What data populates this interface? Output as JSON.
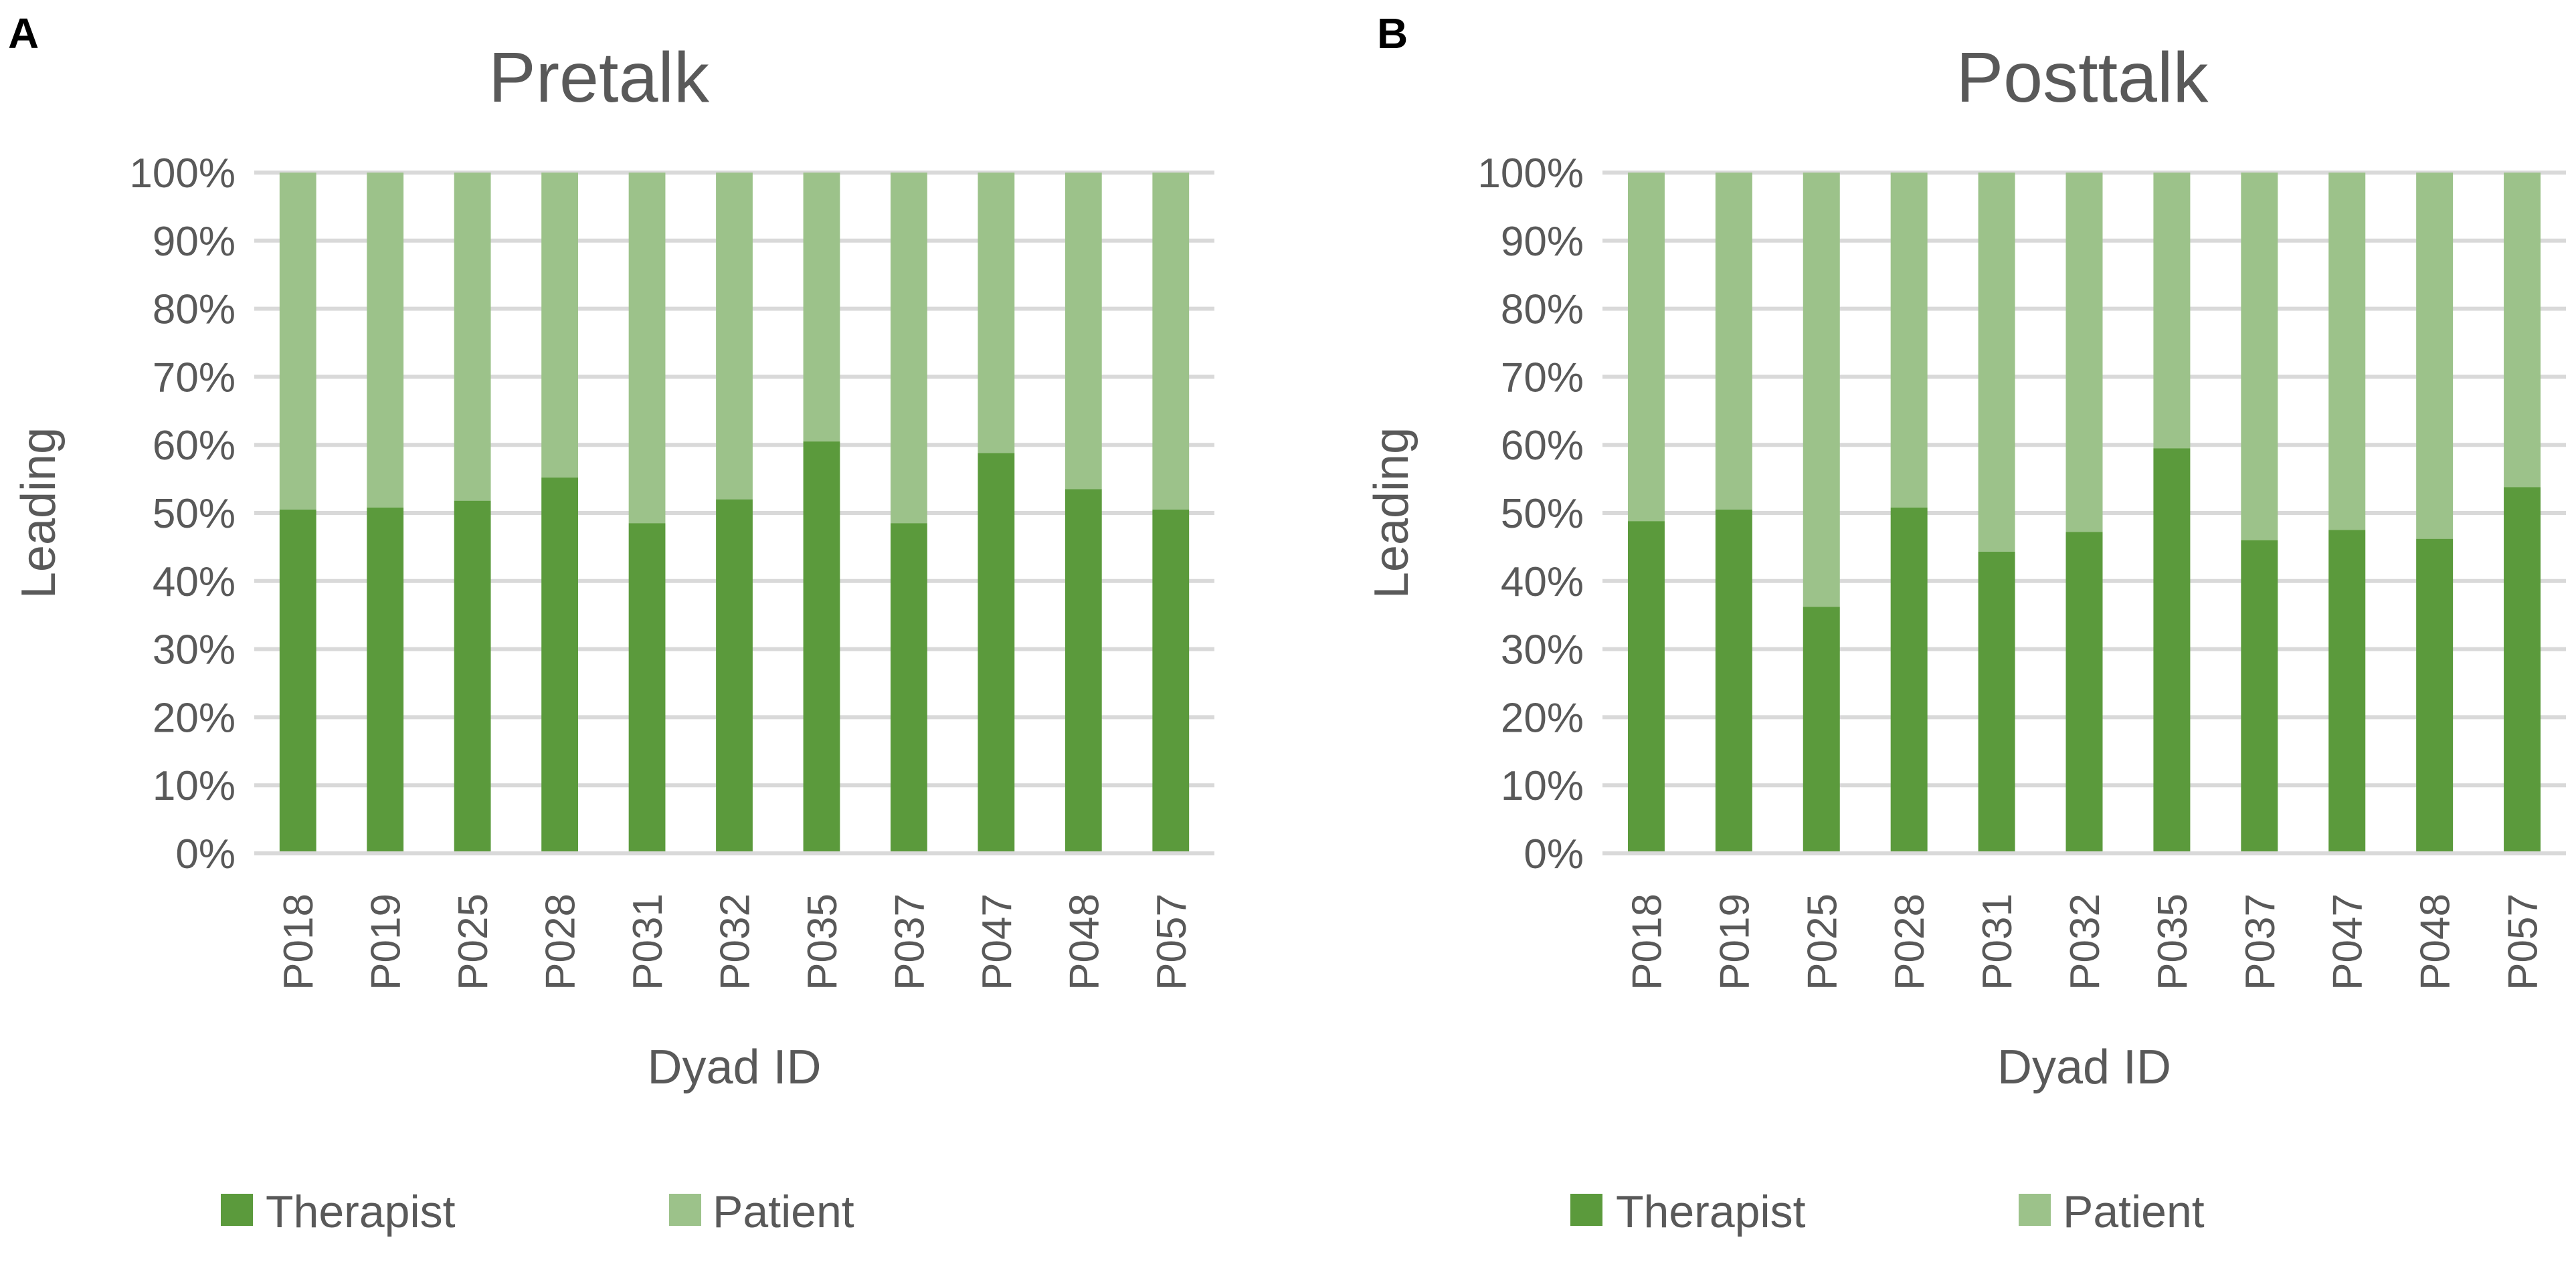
{
  "colors": {
    "therapist": "#5b9a3c",
    "patient": "#9cc28a",
    "grid": "#d9d9d9",
    "text": "#595959"
  },
  "chart_data": [
    {
      "panel_label": "A",
      "type": "bar",
      "stacked": true,
      "title": "Pretalk",
      "xlabel": "Dyad ID",
      "ylabel": "Leading",
      "ylim": [
        0,
        100
      ],
      "yticks": [
        "0%",
        "10%",
        "20%",
        "30%",
        "40%",
        "50%",
        "60%",
        "70%",
        "80%",
        "90%",
        "100%"
      ],
      "categories": [
        "P018",
        "P019",
        "P025",
        "P028",
        "P031",
        "P032",
        "P035",
        "P037",
        "P047",
        "P048",
        "P057"
      ],
      "series": [
        {
          "name": "Therapist",
          "values": [
            50.5,
            50.8,
            51.8,
            55.2,
            48.5,
            52,
            60.5,
            48.5,
            58.8,
            53.5,
            50.5
          ]
        },
        {
          "name": "Patient",
          "values": [
            49.5,
            49.2,
            48.2,
            44.8,
            51.5,
            48,
            39.5,
            51.5,
            41.2,
            46.5,
            49.5
          ]
        }
      ],
      "legend": [
        "Therapist",
        "Patient"
      ],
      "legend_position": "bottom"
    },
    {
      "panel_label": "B",
      "type": "bar",
      "stacked": true,
      "title": "Posttalk",
      "xlabel": "Dyad ID",
      "ylabel": "Leading",
      "ylim": [
        0,
        100
      ],
      "yticks": [
        "0%",
        "10%",
        "20%",
        "30%",
        "40%",
        "50%",
        "60%",
        "70%",
        "80%",
        "90%",
        "100%"
      ],
      "categories": [
        "P018",
        "P019",
        "P025",
        "P028",
        "P031",
        "P032",
        "P035",
        "P037",
        "P047",
        "P048",
        "P057"
      ],
      "series": [
        {
          "name": "Therapist",
          "values": [
            48.8,
            50.5,
            36.2,
            50.8,
            44.3,
            47.2,
            59.5,
            46,
            47.5,
            46.2,
            53.8
          ]
        },
        {
          "name": "Patient",
          "values": [
            51.2,
            49.5,
            63.8,
            49.2,
            55.7,
            52.8,
            40.5,
            54,
            52.5,
            53.8,
            46.2
          ]
        }
      ],
      "legend": [
        "Therapist",
        "Patient"
      ],
      "legend_position": "bottom"
    }
  ]
}
